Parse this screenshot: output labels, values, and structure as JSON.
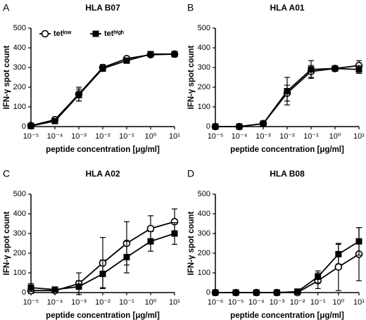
{
  "chart_data": [
    {
      "type": "line",
      "label": "A",
      "title": "HLA B07",
      "xlabel": "peptide concentration [μg/ml]",
      "ylabel": "IFN-γ spot count",
      "log_x": true,
      "legend": "upper left",
      "x": [
        1e-05,
        0.0001,
        0.001,
        0.01,
        0.1,
        1,
        10
      ],
      "xlim": [
        1e-05,
        10
      ],
      "xticks": [
        {
          "value": 1e-05,
          "label": "10⁻⁵"
        },
        {
          "value": 0.0001,
          "label": "10⁻⁴"
        },
        {
          "value": 0.001,
          "label": "10⁻³"
        },
        {
          "value": 0.01,
          "label": "10⁻²"
        },
        {
          "value": 0.1,
          "label": "10⁻¹"
        },
        {
          "value": 1,
          "label": "10⁰"
        },
        {
          "value": 10,
          "label": "10¹"
        }
      ],
      "ylim": [
        0,
        500
      ],
      "yticks": [
        0,
        100,
        200,
        300,
        400,
        500
      ],
      "series": [
        {
          "name": "tetˡᵒʷ",
          "color": "#000000",
          "marker": "circle",
          "values": [
            5,
            35,
            165,
            300,
            345,
            365,
            368
          ],
          "errors": [
            0,
            5,
            35,
            15,
            10,
            10,
            10
          ]
        },
        {
          "name": "tetʰⁱᵍʰ",
          "color": "#000000",
          "marker": "square",
          "values": [
            3,
            28,
            160,
            295,
            335,
            368,
            368
          ],
          "errors": [
            0,
            5,
            30,
            15,
            10,
            10,
            10
          ]
        }
      ]
    },
    {
      "type": "line",
      "label": "B",
      "title": "HLA A01",
      "xlabel": "peptide concentration [μg/ml]",
      "ylabel": "IFN-γ spot count",
      "log_x": true,
      "x": [
        1e-05,
        0.0001,
        0.001,
        0.01,
        0.1,
        1,
        10
      ],
      "xlim": [
        1e-05,
        10
      ],
      "xticks": [
        {
          "value": 1e-05,
          "label": "10⁻⁵"
        },
        {
          "value": 0.0001,
          "label": "10⁻⁴"
        },
        {
          "value": 0.001,
          "label": "10⁻³"
        },
        {
          "value": 0.01,
          "label": "10⁻²"
        },
        {
          "value": 0.1,
          "label": "10⁻¹"
        },
        {
          "value": 1,
          "label": "10⁰"
        },
        {
          "value": 10,
          "label": "10¹"
        }
      ],
      "ylim": [
        0,
        500
      ],
      "yticks": [
        0,
        100,
        200,
        300,
        400,
        500
      ],
      "series": [
        {
          "color": "#000000",
          "marker": "circle",
          "values": [
            0,
            0,
            15,
            170,
            280,
            295,
            310
          ],
          "errors": [
            0,
            0,
            5,
            40,
            30,
            10,
            25
          ]
        },
        {
          "color": "#000000",
          "marker": "square",
          "values": [
            0,
            0,
            15,
            180,
            290,
            295,
            290
          ],
          "errors": [
            0,
            0,
            5,
            70,
            45,
            10,
            20
          ]
        }
      ]
    },
    {
      "type": "line",
      "label": "C",
      "title": "HLA A02",
      "xlabel": "peptide concentration [μg/ml]",
      "ylabel": "IFN-γ spot count",
      "log_x": true,
      "x": [
        1e-05,
        0.0001,
        0.001,
        0.01,
        0.1,
        1,
        10
      ],
      "xlim": [
        1e-05,
        10
      ],
      "xticks": [
        {
          "value": 1e-05,
          "label": "10⁻⁵"
        },
        {
          "value": 0.0001,
          "label": "10⁻⁴"
        },
        {
          "value": 0.001,
          "label": "10⁻³"
        },
        {
          "value": 0.01,
          "label": "10⁻²"
        },
        {
          "value": 0.1,
          "label": "10⁻¹"
        },
        {
          "value": 1,
          "label": "10⁰"
        },
        {
          "value": 10,
          "label": "10¹"
        }
      ],
      "ylim": [
        0,
        500
      ],
      "yticks": [
        0,
        100,
        200,
        300,
        400,
        500
      ],
      "series": [
        {
          "color": "#000000",
          "marker": "circle",
          "values": [
            10,
            10,
            45,
            150,
            250,
            325,
            360
          ],
          "errors": [
            15,
            10,
            55,
            130,
            110,
            65,
            65
          ]
        },
        {
          "color": "#000000",
          "marker": "square",
          "values": [
            25,
            15,
            30,
            95,
            180,
            260,
            300
          ],
          "errors": [
            20,
            10,
            30,
            70,
            80,
            50,
            55
          ]
        }
      ]
    },
    {
      "type": "line",
      "label": "D",
      "title": "HLA B08",
      "xlabel": "peptide concentration [μg/ml]",
      "ylabel": "IFN-γ spot count",
      "log_x": true,
      "x": [
        1e-06,
        1e-05,
        0.0001,
        0.001,
        0.01,
        0.1,
        1,
        10
      ],
      "xlim": [
        1e-06,
        10
      ],
      "xticks": [
        {
          "value": 1e-06,
          "label": "10⁻⁶"
        },
        {
          "value": 1e-05,
          "label": "10⁻⁵"
        },
        {
          "value": 0.0001,
          "label": "10⁻⁴"
        },
        {
          "value": 0.001,
          "label": "10⁻³"
        },
        {
          "value": 0.01,
          "label": "10⁻²"
        },
        {
          "value": 0.1,
          "label": "10⁻¹"
        },
        {
          "value": 1,
          "label": "10⁰"
        },
        {
          "value": 10,
          "label": "10¹"
        }
      ],
      "ylim": [
        0,
        500
      ],
      "yticks": [
        0,
        100,
        200,
        300,
        400,
        500
      ],
      "series": [
        {
          "color": "#000000",
          "marker": "circle",
          "values": [
            0,
            0,
            0,
            0,
            0,
            60,
            130,
            195
          ],
          "errors": [
            0,
            0,
            0,
            0,
            0,
            40,
            120,
            135
          ]
        },
        {
          "color": "#000000",
          "marker": "square",
          "values": [
            0,
            0,
            0,
            0,
            5,
            80,
            195,
            260
          ],
          "errors": [
            0,
            0,
            0,
            0,
            5,
            30,
            50,
            70
          ]
        }
      ]
    }
  ]
}
